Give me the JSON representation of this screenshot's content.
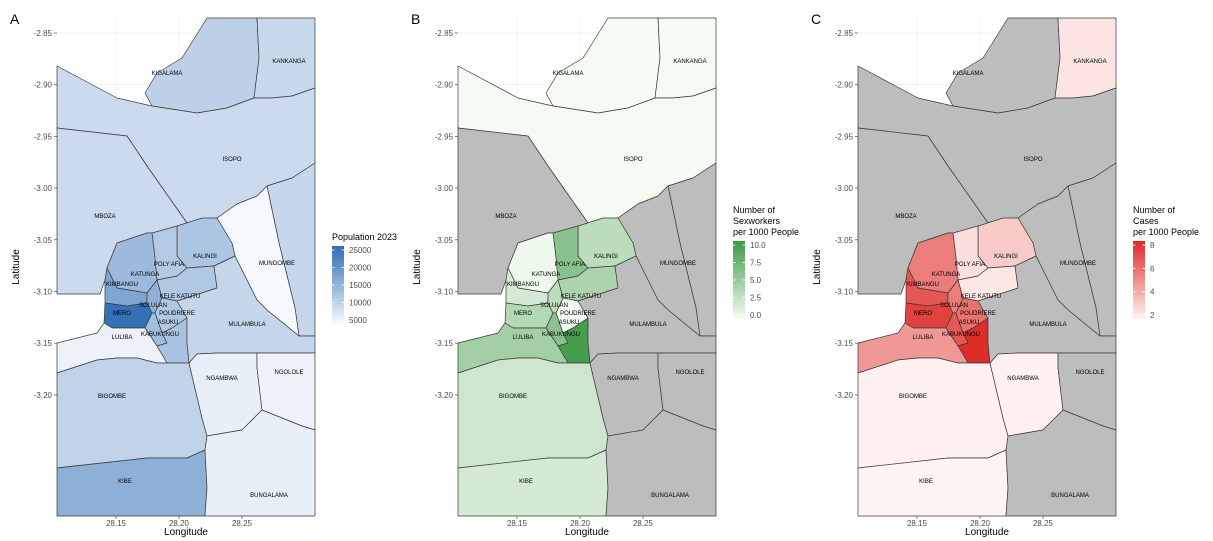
{
  "chart_data": [
    {
      "type": "choropleth",
      "panel": "A",
      "xlabel": "Longitude",
      "ylabel": "Latitude",
      "xticks": [
        "28.15",
        "28.20",
        "28.25"
      ],
      "yticks": [
        "-2.85",
        "-2.90",
        "-2.95",
        "-3.00",
        "-3.05",
        "-3.10",
        "-3.15",
        "-3.20"
      ],
      "legend": {
        "title": [
          "Population 2023"
        ],
        "ticks": [
          "25000",
          "20000",
          "15000",
          "10000",
          "5000"
        ],
        "low_color": "#f7f9fd",
        "high_color": "#2f6db4",
        "placement": "right"
      },
      "values": {
        "KIGALAMA": 10800,
        "KANKANGA": 9600,
        "ISOPO": 9400,
        "MBOZA": 9400,
        "MUNGOMBE": 5200,
        "KALINGI": 12500,
        "POLY AFIA": 11800,
        "KATUNGA": 14000,
        "KIMBANGU": 17000,
        "MERO": 24500,
        "KELE KATUTU": 12000,
        "SOLULAN": 15500,
        "POUDRIERE": 12000,
        "ASUKU": 13500,
        "KABUKUNGU": 12800,
        "MULAMBULA": 10000,
        "LULIBA": 6000,
        "BIGOMBE": 10500,
        "NGAMBWA": 6500,
        "NGOLOLE": 6000,
        "KIBE": 15500,
        "BUNGALAMA": 6500,
        "EAST": 9800
      }
    },
    {
      "type": "choropleth",
      "panel": "B",
      "xlabel": "Longitude",
      "ylabel": "Latitude",
      "xticks": [
        "28.15",
        "28.20",
        "28.25"
      ],
      "yticks": [
        "-2.85",
        "-2.90",
        "-2.95",
        "-3.00",
        "-3.05",
        "-3.10",
        "-3.15",
        "-3.20"
      ],
      "legend": {
        "title": [
          "Number of",
          "Sexworkers",
          "per 1000 People"
        ],
        "ticks": [
          "10.0",
          "7.5",
          "5.0",
          "2.5",
          "0.0"
        ],
        "low_color": "#f7fcf5",
        "high_color": "#3c9a46",
        "placement": "right"
      },
      "values": {
        "KIGALAMA": 0.1,
        "KANKANGA": 0.1,
        "ISOPO": 0.1,
        "MBOZA": null,
        "MUNGOMBE": null,
        "KALINGI": 3.5,
        "POLY AFIA": 6.5,
        "KATUNGA": 0.5,
        "KIMBANGU": 2.0,
        "MERO": 4.0,
        "KELE KATUTU": 4.5,
        "SOLULAN": 3.5,
        "POUDRIERE": 0.3,
        "ASUKU": 6.5,
        "KABUKUNGU": 10.5,
        "MULAMBULA": null,
        "LULIBA": 5.0,
        "BIGOMBE": 2.5,
        "NGAMBWA": null,
        "NGOLOLE": null,
        "KIBE": 2.0,
        "BUNGALAMA": null,
        "EAST": null
      }
    },
    {
      "type": "choropleth",
      "panel": "C",
      "xlabel": "Longitude",
      "ylabel": "Latitude",
      "xticks": [
        "28.15",
        "28.20",
        "28.25"
      ],
      "yticks": [
        "-2.85",
        "-2.90",
        "-2.95",
        "-3.00",
        "-3.05",
        "-3.10",
        "-3.15",
        "-3.20"
      ],
      "legend": {
        "title": [
          "Number of",
          "Cases",
          "per 1000 People"
        ],
        "ticks": [
          "8",
          "6",
          "4",
          "2"
        ],
        "low_color": "#fff4f2",
        "high_color": "#dd2a26",
        "placement": "right"
      },
      "values": {
        "KIGALAMA": null,
        "KANKANGA": 1.6,
        "ISOPO": null,
        "MBOZA": null,
        "MUNGOMBE": null,
        "KALINGI": 2.6,
        "POLY AFIA": 1.8,
        "KATUNGA": 5.5,
        "KIMBANGU": 7.0,
        "MERO": 7.8,
        "KELE KATUTU": 1.5,
        "SOLULAN": 5.5,
        "POUDRIERE": 6.0,
        "ASUKU": 7.0,
        "KABUKUNGU": 8.6,
        "MULAMBULA": null,
        "LULIBA": 4.5,
        "BIGOMBE": 1.1,
        "NGAMBWA": 1.1,
        "NGOLOLE": null,
        "KIBE": 1.0,
        "BUNGALAMA": null,
        "EAST": null
      }
    }
  ],
  "region_labels": {
    "KIGALAMA": "KIGALAMA",
    "KANKANGA": "KANKANGA",
    "ISOPO": "ISOPO",
    "MBOZA": "MBOZA",
    "MUNGOMBE": "MUNGOMBE",
    "KALINGI": "KALINGI",
    "POLY AFIA": "POLY AFIA",
    "KATUNGA": "KATUNGA",
    "KIMBANGU": "KIMBANGU",
    "MERO": "MERO",
    "KELE KATUTU": "KELE KATUTU",
    "SOLULAN": "SOLULAN",
    "POUDRIERE": "POUDRIERE",
    "ASUKU": "ASUKU",
    "KABUKUNGU": "KABUKUNGU",
    "MULAMBULA": "MULAMBULA",
    "LULIBA": "LULIBA",
    "BIGOMBE": "BIGOMBE",
    "NGAMBWA": "NGAMBWA",
    "NGOLOLE": "NGOLOLE",
    "KIBE": "KIBE",
    "BUNGALAMA": "BUNGALAMA"
  },
  "na_color": "#bdbdbd"
}
